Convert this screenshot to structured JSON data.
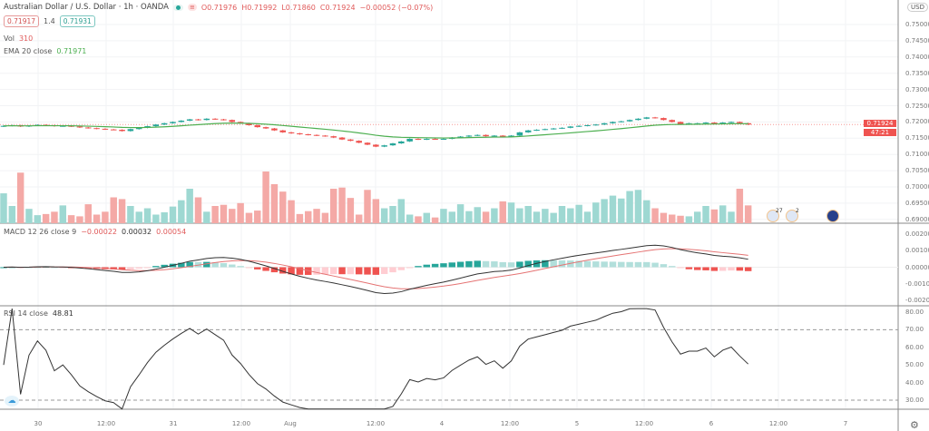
{
  "header": {
    "symbol": "Australian Dollar / U.S. Dollar · 1h · OANDA",
    "open": "O0.71976",
    "high": "H0.71992",
    "low": "L0.71860",
    "close": "C0.71924",
    "change": "−0.00052 (−0.07%)",
    "bid": "0.71917",
    "spread": "1.4",
    "ask": "0.71931"
  },
  "volume_legend": {
    "label": "Vol",
    "value": "310"
  },
  "ema_legend": {
    "label": "EMA 20 close",
    "value": "0.71971"
  },
  "macd_legend": {
    "label": "MACD 12 26 close 9",
    "hist": "−0.00022",
    "macd": "0.00032",
    "signal": "0.00054"
  },
  "rsi_legend": {
    "label": "RSI 14 close",
    "value": "48.81"
  },
  "price_axis": {
    "currency": "USD",
    "last_price": "0.71924",
    "countdown": "47:21",
    "ticks": [
      "0.75000",
      "0.74500",
      "0.74000",
      "0.73500",
      "0.73000",
      "0.72500",
      "0.72000",
      "0.71500",
      "0.71000",
      "0.70500",
      "0.70000",
      "0.69500",
      "0.69000"
    ]
  },
  "macd_axis": {
    "ticks": [
      "0.00200",
      "0.00100",
      "0.00000",
      "-0.00100",
      "-0.00200"
    ]
  },
  "rsi_axis": {
    "ticks": [
      "80.00",
      "70.00",
      "60.00",
      "50.00",
      "40.00",
      "30.00"
    ]
  },
  "time_axis": {
    "ticks": [
      "30",
      "12:00",
      "31",
      "12:00",
      "Aug",
      "12:00",
      "4",
      "12:00",
      "5",
      "12:00",
      "6",
      "12:00",
      "7"
    ]
  },
  "events": {
    "badge1": "27",
    "badge2": "2"
  },
  "colors": {
    "up": "#26a69a",
    "down": "#ef5350",
    "ema": "#4caf50",
    "macd": "#333333",
    "signal": "#e57373"
  },
  "chart_data": {
    "type": "candlestick",
    "interval": "1h",
    "price_ylim": [
      0.69,
      0.75
    ],
    "closes": [
      0.7188,
      0.719,
      0.7186,
      0.7189,
      0.7191,
      0.719,
      0.7187,
      0.7188,
      0.7186,
      0.7183,
      0.7181,
      0.7179,
      0.7177,
      0.7176,
      0.7172,
      0.7178,
      0.7182,
      0.7187,
      0.7192,
      0.7196,
      0.72,
      0.7204,
      0.7208,
      0.7206,
      0.721,
      0.7208,
      0.7206,
      0.72,
      0.7196,
      0.719,
      0.7184,
      0.718,
      0.7174,
      0.7168,
      0.7165,
      0.7162,
      0.716,
      0.7158,
      0.7156,
      0.7152,
      0.7146,
      0.7142,
      0.7136,
      0.713,
      0.7124,
      0.7128,
      0.7134,
      0.714,
      0.7148,
      0.7146,
      0.7148,
      0.7147,
      0.7148,
      0.7152,
      0.7155,
      0.7158,
      0.716,
      0.7156,
      0.7158,
      0.7154,
      0.7158,
      0.7168,
      0.7174,
      0.7176,
      0.7178,
      0.718,
      0.7182,
      0.7186,
      0.7188,
      0.719,
      0.7192,
      0.7196,
      0.72,
      0.7202,
      0.7206,
      0.721,
      0.7214,
      0.7212,
      0.7206,
      0.72,
      0.7194,
      0.7196,
      0.7196,
      0.7198,
      0.7194,
      0.7198,
      0.72,
      0.7196,
      0.7192
    ],
    "volumes": [
      520,
      300,
      880,
      250,
      140,
      160,
      200,
      310,
      140,
      120,
      330,
      150,
      200,
      450,
      420,
      300,
      200,
      260,
      150,
      190,
      290,
      400,
      600,
      450,
      200,
      300,
      320,
      250,
      350,
      180,
      220,
      900,
      680,
      550,
      400,
      160,
      210,
      250,
      180,
      600,
      620,
      440,
      150,
      580,
      420,
      260,
      300,
      420,
      150,
      120,
      180,
      100,
      250,
      200,
      330,
      210,
      280,
      200,
      260,
      380,
      360,
      260,
      300,
      200,
      250,
      180,
      300,
      260,
      320,
      200,
      360,
      420,
      480,
      430,
      560,
      580,
      400,
      260,
      180,
      150,
      130,
      120,
      200,
      300,
      240,
      310,
      200,
      600,
      310
    ],
    "macd_ylim": [
      -0.0025,
      0.0025
    ],
    "rsi_ylim": [
      25,
      82
    ],
    "rsi_levels": [
      70,
      30
    ]
  }
}
